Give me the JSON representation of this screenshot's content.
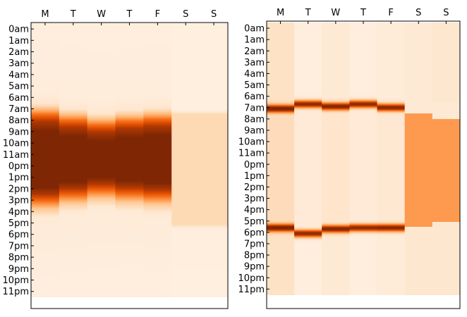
{
  "chart_data": [
    {
      "type": "heatmap",
      "x_categories": [
        "M",
        "T",
        "W",
        "T",
        "F",
        "S",
        "S"
      ],
      "y_categories": [
        "0am",
        "1am",
        "2am",
        "3am",
        "4am",
        "5am",
        "6am",
        "7am",
        "8am",
        "9am",
        "10am",
        "11am",
        "0pm",
        "1pm",
        "2pm",
        "3pm",
        "4pm",
        "5pm",
        "6pm",
        "7pm",
        "8pm",
        "9pm",
        "10pm",
        "11pm"
      ],
      "colormap": "Oranges",
      "weekday_profile": [
        [
          0,
          0.06
        ],
        [
          6,
          0.07
        ],
        [
          7.0,
          0.12
        ],
        [
          7.6,
          0.35
        ],
        [
          8.0,
          0.6
        ],
        [
          8.6,
          0.85
        ],
        [
          9.4,
          1.0
        ],
        [
          14.4,
          1.0
        ],
        [
          15.0,
          0.85
        ],
        [
          15.6,
          0.6
        ],
        [
          16.2,
          0.3
        ],
        [
          17.0,
          0.1
        ],
        [
          17.6,
          0.08
        ],
        [
          23,
          0.06
        ],
        [
          24,
          0.06
        ]
      ],
      "weekend_profile": [
        [
          0,
          0.05
        ],
        [
          7.6,
          0.05
        ],
        [
          8.0,
          0.2
        ],
        [
          17.6,
          0.2
        ],
        [
          18.0,
          0.06
        ],
        [
          24,
          0.05
        ]
      ],
      "day_shift_hours": [
        0,
        0.5,
        0.9,
        0.6,
        0.4,
        0,
        0
      ]
    },
    {
      "type": "heatmap",
      "x_categories": [
        "M",
        "T",
        "W",
        "T",
        "F",
        "S",
        "S"
      ],
      "y_categories": [
        "0am",
        "1am",
        "2am",
        "3am",
        "4am",
        "5am",
        "6am",
        "7am",
        "8am",
        "9am",
        "10am",
        "11am",
        "0pm",
        "1pm",
        "2pm",
        "3pm",
        "4pm",
        "5pm",
        "6pm",
        "7pm",
        "8pm",
        "9pm",
        "10pm",
        "11pm"
      ],
      "colormap": "Oranges",
      "weekday_peaks_hours": [
        [
          7.6,
          18.1
        ],
        [
          7.2,
          18.6
        ],
        [
          7.4,
          18.2
        ],
        [
          7.2,
          18.1
        ],
        [
          7.5,
          18.1
        ]
      ],
      "weekday_base": [
        0.15,
        0.06,
        0.1,
        0.06,
        0.08
      ],
      "weekend_level": [
        [
          0.1,
          0.1,
          0.45,
          0.12
        ],
        [
          0.12,
          0.1,
          0.45,
          0.12
        ]
      ],
      "weekend_block_hours": [
        [
          8.0,
          18.0
        ],
        [
          8.5,
          17.6
        ]
      ]
    }
  ]
}
